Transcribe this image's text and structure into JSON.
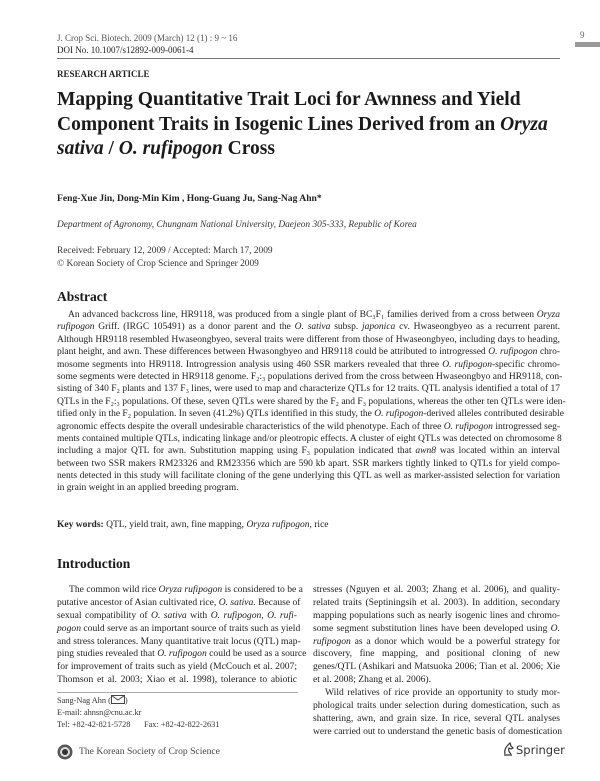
{
  "header": {
    "journal": "J. Crop Sci. Biotech. 2009 (March) 12 (1) : 9 ~ 16",
    "doi": "DOI No. 10.1007/s12892-009-0061-4",
    "page_number": "9",
    "article_type": "RESEARCH ARTICLE"
  },
  "title_lines": [
    [
      {
        "t": "Mapping Quantitative Trait Loci for Awnness and Yield"
      }
    ],
    [
      {
        "t": "Component Traits in Isogenic Lines Derived from an "
      },
      {
        "t": "Oryza",
        "i": true
      }
    ],
    [
      {
        "t": "sativa",
        "i": true
      },
      {
        "t": " / "
      },
      {
        "t": "O. rufipogon",
        "i": true
      },
      {
        "t": " Cross"
      }
    ]
  ],
  "authors": "Feng-Xue Jin, Dong-Min Kim , Hong-Guang Ju, Sang-Nag Ahn*",
  "affiliation": "Department of Agronomy, Chungnam National University, Daejeon 305-333, Republic of Korea",
  "received": "Received: February 12, 2009 / Accepted: March 17, 2009",
  "copyright": "© Korean Society of Crop Science and Springer 2009",
  "abstract": {
    "heading": "Abstract",
    "lines": [
      [
        {
          "t": "An advanced backcross line, HR9118, was produced from a single plant of BC₃F₁ families derived from a cross between "
        },
        {
          "t": "Oryza",
          "i": true
        }
      ],
      [
        {
          "t": "rufipogon",
          "i": true
        },
        {
          "t": " Griff. (IRGC 105491) as a donor parent and the "
        },
        {
          "t": "O. sativa",
          "i": true
        },
        {
          "t": " subsp. "
        },
        {
          "t": "japonica",
          "i": true
        },
        {
          "t": " cv. Hwaseongbyeo as a recurrent parent."
        }
      ],
      [
        {
          "t": "Although HR9118 resembled Hwaseongbyeo, several traits were different from those of Hwaseongbyeo, including days to heading,"
        }
      ],
      [
        {
          "t": "plant height, and awn. These differences between Hwasongbyeo and HR9118 could be attributed to introgressed "
        },
        {
          "t": "O. rufipogon",
          "i": true
        },
        {
          "t": " chro-"
        }
      ],
      [
        {
          "t": "mosome segments into HR9118. Introgression analysis using 460 SSR markers revealed that three "
        },
        {
          "t": "O. rufipogon",
          "i": true
        },
        {
          "t": "-specific chromo-"
        }
      ],
      [
        {
          "t": "some segments were detected in HR9118 genome. F₂:₃ populations derived from the cross between Hwaseongbyo and HR9118, con-"
        }
      ],
      [
        {
          "t": "sisting of 340 F₂ plants and 137 F₃ lines, were used to map and characterize QTLs for 12 traits. QTL analysis identified a total of 17"
        }
      ],
      [
        {
          "t": "QTLs in the F₂:₃ populations. Of these, seven QTLs were shared by the F₂ and F₃ populations, whereas the other ten QTLs were iden-"
        }
      ],
      [
        {
          "t": "tified only in the F₂ population. In seven (41.2%) QTLs identified in this study, the "
        },
        {
          "t": "O. rufipogon",
          "i": true
        },
        {
          "t": "-derived alleles contributed desirable"
        }
      ],
      [
        {
          "t": "agronomic effects despite the overall undesirable characteristics of the wild phenotype. Each of three "
        },
        {
          "t": "O. rufipogon",
          "i": true
        },
        {
          "t": " introgressed seg-"
        }
      ],
      [
        {
          "t": "ments contained multiple QTLs, indicating linkage and/or pleotropic effects. A cluster of eight QTLs was detected on chromosome 8"
        }
      ],
      [
        {
          "t": "including a major QTL for awn. Substitution mapping using F₃ population indicated that "
        },
        {
          "t": "awn8",
          "i": true
        },
        {
          "t": " was located within an interval"
        }
      ],
      [
        {
          "t": "between two SSR makers RM23326 and RM23356 which are 590 kb apart. SSR markers tightly linked to QTLs for yield compo-"
        }
      ],
      [
        {
          "t": "nents detected in this study will facilitate cloning of the gene underlying this QTL as well as marker-assisted selection for variation"
        }
      ],
      [
        {
          "t": "in grain weight in an applied breeding program."
        }
      ]
    ]
  },
  "keywords": {
    "label": "Key words:",
    "segments": [
      {
        "t": " QTL, yield trait, awn, fine mapping, "
      },
      {
        "t": "Oryza rufipogon",
        "i": true
      },
      {
        "t": ", rice"
      }
    ]
  },
  "introduction": {
    "heading": "Introduction",
    "left_lines": [
      [
        {
          "t": "The common wild rice "
        },
        {
          "t": "Oryza rufipogon",
          "i": true
        },
        {
          "t": " is considered to be a"
        }
      ],
      [
        {
          "t": "putative ancestor of Asian cultivated rice, "
        },
        {
          "t": "O. sativa.",
          "i": true
        },
        {
          "t": " Because of"
        }
      ],
      [
        {
          "t": "sexual compatibility of "
        },
        {
          "t": "O. sativa",
          "i": true
        },
        {
          "t": " with "
        },
        {
          "t": "O. rufipogon, O. rufi-",
          "i": true
        }
      ],
      [
        {
          "t": "pogon",
          "i": true
        },
        {
          "t": " could serve as an important source of traits such as yield"
        }
      ],
      [
        {
          "t": "and stress tolerances. Many quantitative trait locus (QTL) map-"
        }
      ],
      [
        {
          "t": "ping studies revealed that "
        },
        {
          "t": "O. rufipogon",
          "i": true
        },
        {
          "t": " could be used as a source"
        }
      ],
      [
        {
          "t": "for improvement of traits such as yield (McCouch et al. 2007;"
        }
      ],
      [
        {
          "t": "Thomson et al. 2003; Xiao et al. 1998), tolerance to abiotic"
        }
      ]
    ],
    "right_lines": [
      [
        {
          "t": "stresses (Nguyen et al. 2003; Zhang et al. 2006), and quality-"
        }
      ],
      [
        {
          "t": "related traits (Septiningsih et al. 2003). In addition, secondary"
        }
      ],
      [
        {
          "t": "mapping populations such as nearly isogenic lines and chromo-"
        }
      ],
      [
        {
          "t": "some segment substitution lines have been developed using "
        },
        {
          "t": "O.",
          "i": true
        }
      ],
      [
        {
          "t": "rufipogon",
          "i": true
        },
        {
          "t": " as a donor which would be a powerful strategy for"
        }
      ],
      [
        {
          "t": "discovery, fine mapping, and positional cloning of new"
        }
      ],
      [
        {
          "t": "genes/QTL (Ashikari and Matsuoka 2006; Tian et al. 2006; Xie"
        }
      ],
      [
        {
          "t": "et al. 2008; Zhang et al. 2006)."
        }
      ],
      [
        {
          "t": "Wild relatives of rice provide an opportunity to study mor-"
        }
      ],
      [
        {
          "t": "phological traits under selection during domestication, such as"
        }
      ],
      [
        {
          "t": "shattering, awn, and grain size. In rice, several QTL analyses"
        }
      ],
      [
        {
          "t": "were carried out to understand the genetic basis of domestication"
        }
      ]
    ]
  },
  "footnote": {
    "corresponding": "Sang-Nag Ahn (",
    "corresponding_close": ")",
    "email": "E-mail: ahnsn@cnu.ac.kr",
    "tel": "Tel: +82-42-821-5728",
    "fax": "Fax: +82-42-822-2631"
  },
  "footer": {
    "society": "The Korean Society of Crop Science",
    "publisher": "Springer"
  },
  "icons": {
    "email": "envelope-icon",
    "society_logo": "society-seal-icon",
    "publisher_logo": "springer-horse-icon"
  }
}
